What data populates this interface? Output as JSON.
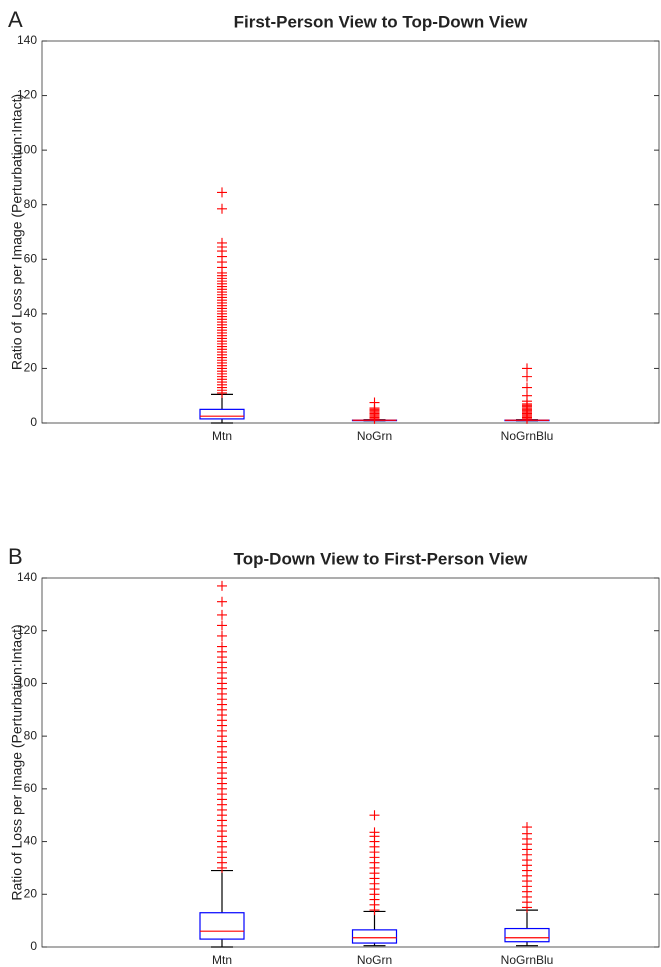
{
  "chart_data": [
    {
      "type": "box",
      "panel_label": "A",
      "title": "First-Person View to Top-Down View",
      "ylabel": "Ratio of Loss per Image (Perturbation:Intact)",
      "categories": [
        "Mtn",
        "NoGrn",
        "NoGrnBlu"
      ],
      "ylim": [
        0,
        140
      ],
      "yticks": [
        0,
        20,
        40,
        60,
        80,
        100,
        120,
        140
      ],
      "box_color": "#0000ff",
      "median_color": "#ff0000",
      "flier_color": "#ff0000",
      "whisker_color": "#000000",
      "boxes": [
        {
          "whislo": 0,
          "q1": 1.5,
          "med": 2.5,
          "q3": 5,
          "whishi": 10.5,
          "fliers": [
            11,
            12,
            13,
            14,
            15,
            16,
            17,
            18,
            19,
            20,
            21,
            22,
            23,
            24,
            25,
            26,
            27,
            28,
            29,
            30,
            31,
            32,
            33,
            34,
            35,
            36,
            37,
            38,
            39,
            40,
            41,
            42,
            43,
            44,
            45,
            46,
            47,
            48,
            49,
            50,
            51,
            52,
            53,
            54,
            55,
            57,
            59,
            61,
            63,
            64.5,
            66,
            78.5,
            84.5
          ]
        },
        {
          "whislo": 0.8,
          "q1": 0.95,
          "med": 1,
          "q3": 1.05,
          "whishi": 1.2,
          "fliers": [
            1.5,
            2,
            2.5,
            3,
            3.5,
            4,
            4.5,
            5,
            5.5,
            7.5
          ]
        },
        {
          "whislo": 0.8,
          "q1": 0.95,
          "med": 1,
          "q3": 1.05,
          "whishi": 1.2,
          "fliers": [
            1.5,
            2,
            2.5,
            3,
            3.5,
            4,
            4.5,
            5,
            5.5,
            6,
            6.5,
            7,
            8,
            10,
            13,
            17,
            20
          ]
        }
      ]
    },
    {
      "type": "box",
      "panel_label": "B",
      "title": "Top-Down View to First-Person View",
      "ylabel": "Ratio of Loss per Image (Perturbation:Intact)",
      "categories": [
        "Mtn",
        "NoGrn",
        "NoGrnBlu"
      ],
      "ylim": [
        0,
        140
      ],
      "yticks": [
        0,
        20,
        40,
        60,
        80,
        100,
        120,
        140
      ],
      "box_color": "#0000ff",
      "median_color": "#ff0000",
      "flier_color": "#ff0000",
      "whisker_color": "#000000",
      "boxes": [
        {
          "whislo": 0,
          "q1": 3,
          "med": 6,
          "q3": 13,
          "whishi": 29,
          "fliers": [
            30,
            32,
            34,
            36,
            38,
            40,
            42,
            44,
            46,
            48,
            50,
            52,
            54,
            56,
            58,
            60,
            62,
            64,
            66,
            68,
            70,
            72,
            74,
            76,
            78,
            80,
            82,
            84,
            86,
            88,
            90,
            92,
            94,
            96,
            98,
            100,
            102,
            104,
            106,
            108,
            110,
            112,
            114,
            118,
            122,
            126,
            131,
            137
          ]
        },
        {
          "whislo": 0.5,
          "q1": 1.5,
          "med": 3.5,
          "q3": 6.5,
          "whishi": 13.5,
          "fliers": [
            14,
            16,
            18,
            20,
            22,
            24,
            26,
            28,
            30,
            32,
            34,
            36,
            38,
            40,
            42,
            43.5,
            50
          ]
        },
        {
          "whislo": 0.5,
          "q1": 2,
          "med": 3.5,
          "q3": 7,
          "whishi": 14,
          "fliers": [
            15,
            17,
            19,
            21,
            23,
            25,
            27,
            29,
            31,
            33,
            35,
            37,
            39,
            41,
            43,
            45.5
          ]
        }
      ]
    }
  ]
}
